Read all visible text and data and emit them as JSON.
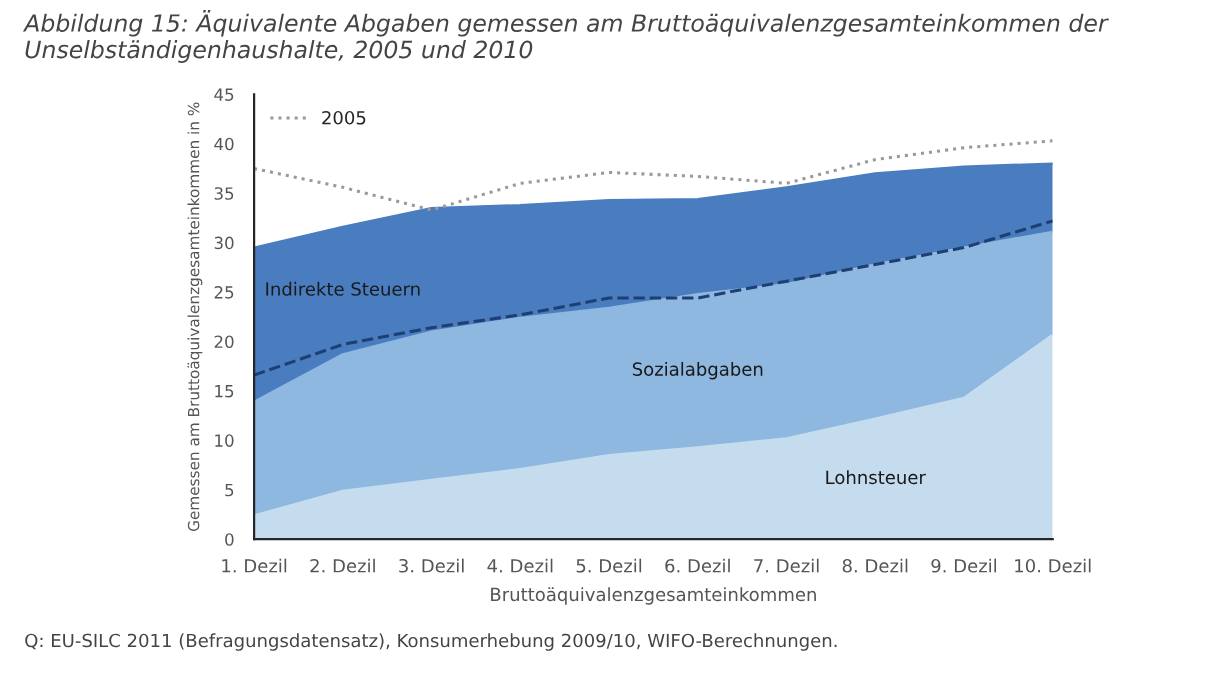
{
  "chart_data": {
    "type": "area",
    "stacked": true,
    "title": "Abbildung 15: Äquivalente Abgaben gemessen am Bruttoäquivalenzgesamteinkommen der Unselbständigenhaushalte, 2005 und 2010",
    "xlabel": "Bruttoäquivalenzgesamteinkommen",
    "ylabel": "Gemessen am Bruttoäquivalenzgesamteinkommen in %",
    "categories": [
      "1. Dezil",
      "2. Dezil",
      "3. Dezil",
      "4. Dezil",
      "5. Dezil",
      "6. Dezil",
      "7. Dezil",
      "8. Dezil",
      "9. Dezil",
      "10. Dezil"
    ],
    "series": [
      {
        "name": "Lohnsteuer",
        "color": "#c5dcef",
        "values": [
          2.4,
          4.9,
          6.0,
          7.1,
          8.5,
          9.3,
          10.2,
          12.2,
          14.3,
          20.7
        ]
      },
      {
        "name": "Sozialabgaben",
        "color": "#8fb8e0",
        "values": [
          11.5,
          13.8,
          15.0,
          15.3,
          14.9,
          15.5,
          15.6,
          15.6,
          15.2,
          10.4
        ]
      },
      {
        "name": "Indirekte Steuern",
        "color": "#4a7dc0",
        "values": [
          15.6,
          12.9,
          12.5,
          11.4,
          10.9,
          9.6,
          9.8,
          9.2,
          8.2,
          6.9
        ]
      },
      {
        "type": "line",
        "color": "#1f3f73",
        "line_style": "dashed",
        "values": [
          16.6,
          19.7,
          21.4,
          22.7,
          24.4,
          24.4,
          26.1,
          27.8,
          29.5,
          32.2
        ]
      },
      {
        "type": "line",
        "name": "2005",
        "color": "#9a9a9a",
        "line_style": "dotted",
        "values": [
          37.5,
          35.6,
          33.3,
          36.0,
          37.1,
          36.7,
          36.0,
          38.4,
          39.6,
          40.3
        ]
      }
    ],
    "ylim": [
      0,
      45
    ],
    "yticks": [
      0,
      5,
      10,
      15,
      20,
      25,
      30,
      35,
      40,
      45
    ],
    "grid": false,
    "legend": "top left",
    "annotations": [
      "Q: EU-SILC 2011 (Befragungsdatensatz), Konsumerhebung 2009/10, WIFO-Berechnungen."
    ]
  }
}
